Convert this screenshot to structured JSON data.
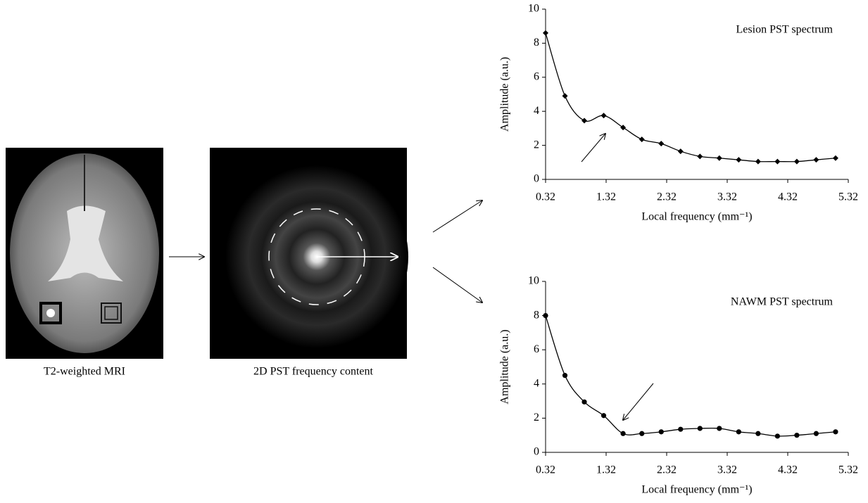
{
  "panels": {
    "mri_caption": "T2-weighted MRI",
    "pst_caption": "2D PST frequency content"
  },
  "chart_data": [
    {
      "type": "line",
      "marker": "diamond",
      "legend": "upper right",
      "xlabel": "Local frequency (mm⁻¹)",
      "ylabel": "Amplitude (a.u.)",
      "x": [
        0.32,
        0.64,
        0.96,
        1.28,
        1.6,
        1.91,
        2.23,
        2.55,
        2.87,
        3.19,
        3.51,
        3.83,
        4.15,
        4.47,
        4.79,
        5.11
      ],
      "series": [
        {
          "name": "Lesion PST spectrum",
          "color": "#000000",
          "values": [
            8.6,
            4.9,
            3.45,
            3.75,
            3.05,
            2.35,
            2.1,
            1.65,
            1.35,
            1.25,
            1.15,
            1.05,
            1.05,
            1.05,
            1.15,
            1.25
          ]
        }
      ],
      "xlim": [
        0.32,
        5.32
      ],
      "xticks": [
        0.32,
        1.32,
        2.32,
        3.32,
        4.32,
        5.32
      ],
      "ylim": [
        0,
        10
      ],
      "yticks": [
        0,
        2,
        4,
        6,
        8,
        10
      ]
    },
    {
      "type": "line",
      "marker": "circle",
      "legend": "upper right",
      "xlabel": "Local frequency (mm⁻¹)",
      "ylabel": "Amplitude (a.u.)",
      "x": [
        0.32,
        0.64,
        0.96,
        1.28,
        1.6,
        1.91,
        2.23,
        2.55,
        2.87,
        3.19,
        3.51,
        3.83,
        4.15,
        4.47,
        4.79,
        5.11
      ],
      "series": [
        {
          "name": "NAWM PST spectrum",
          "color": "#000000",
          "values": [
            8.0,
            4.5,
            2.95,
            2.15,
            1.1,
            1.1,
            1.2,
            1.35,
            1.4,
            1.4,
            1.2,
            1.1,
            0.95,
            1.0,
            1.1,
            1.2
          ]
        }
      ],
      "xlim": [
        0.32,
        5.32
      ],
      "xticks": [
        0.32,
        1.32,
        2.32,
        3.32,
        4.32,
        5.32
      ],
      "ylim": [
        0,
        10
      ],
      "yticks": [
        0,
        2,
        4,
        6,
        8,
        10
      ]
    }
  ]
}
